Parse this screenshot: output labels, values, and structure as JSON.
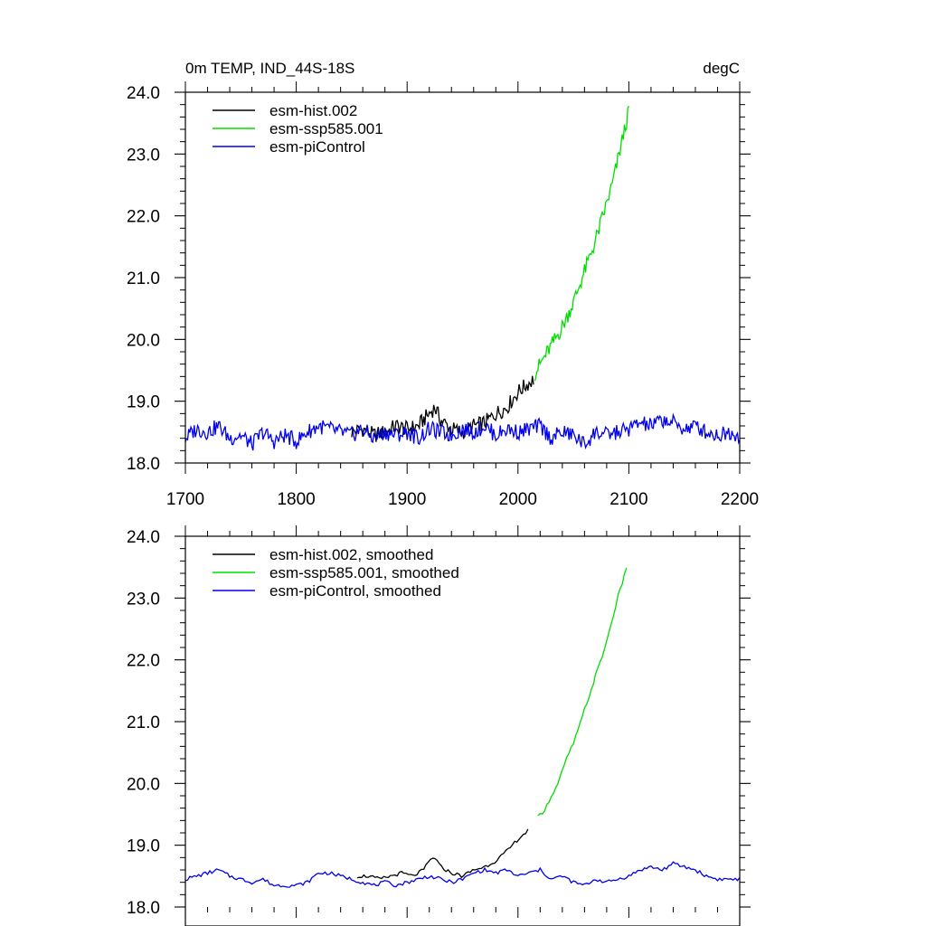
{
  "figure": {
    "title_left": "0m TEMP, IND_44S-18S",
    "title_right": "degC"
  },
  "colors": {
    "hist": "#000000",
    "ssp": "#00dd00",
    "picontrol": "#0000ee"
  },
  "chart_data": [
    {
      "type": "line",
      "panel": "top",
      "xlim": [
        1700,
        2200
      ],
      "ylim": [
        18.0,
        24.0
      ],
      "x_ticks": [
        1700,
        1800,
        1900,
        2000,
        2100,
        2200
      ],
      "x_tick_labels": [
        "1700",
        "1800",
        "1900",
        "2000",
        "2100",
        "2200"
      ],
      "y_ticks": [
        18.0,
        19.0,
        20.0,
        21.0,
        22.0,
        23.0,
        24.0
      ],
      "y_tick_labels": [
        "18.0",
        "19.0",
        "20.0",
        "21.0",
        "22.0",
        "23.0",
        "24.0"
      ],
      "legend_position": "top-left",
      "series": [
        {
          "name": "esm-hist.002",
          "color_key": "hist",
          "x": [
            1850,
            1860,
            1870,
            1880,
            1890,
            1900,
            1910,
            1920,
            1925,
            1930,
            1940,
            1950,
            1960,
            1970,
            1980,
            1990,
            2000,
            2010,
            2014
          ],
          "y": [
            18.5,
            18.55,
            18.45,
            18.5,
            18.6,
            18.55,
            18.6,
            18.8,
            18.9,
            18.7,
            18.55,
            18.5,
            18.6,
            18.65,
            18.8,
            18.9,
            19.15,
            19.3,
            19.35
          ]
        },
        {
          "name": "esm-ssp585.001",
          "color_key": "ssp",
          "x": [
            2015,
            2020,
            2025,
            2030,
            2035,
            2040,
            2045,
            2050,
            2055,
            2060,
            2065,
            2070,
            2075,
            2080,
            2085,
            2090,
            2095,
            2100
          ],
          "y": [
            19.45,
            19.6,
            19.75,
            19.9,
            20.05,
            20.2,
            20.4,
            20.6,
            20.85,
            21.1,
            21.35,
            21.6,
            21.9,
            22.2,
            22.5,
            22.9,
            23.3,
            23.7
          ]
        },
        {
          "name": "esm-piControl",
          "color_key": "picontrol",
          "x": [
            1700,
            1710,
            1720,
            1730,
            1740,
            1750,
            1760,
            1770,
            1780,
            1790,
            1800,
            1810,
            1820,
            1830,
            1840,
            1850,
            1860,
            1870,
            1880,
            1890,
            1900,
            1910,
            1920,
            1930,
            1940,
            1950,
            1960,
            1970,
            1980,
            1990,
            2000,
            2010,
            2020,
            2030,
            2040,
            2050,
            2060,
            2070,
            2080,
            2090,
            2100,
            2110,
            2120,
            2130,
            2140,
            2150,
            2160,
            2170,
            2180,
            2190,
            2200
          ],
          "y": [
            18.4,
            18.55,
            18.5,
            18.6,
            18.4,
            18.45,
            18.3,
            18.5,
            18.35,
            18.45,
            18.35,
            18.5,
            18.6,
            18.55,
            18.5,
            18.45,
            18.55,
            18.4,
            18.5,
            18.45,
            18.5,
            18.4,
            18.55,
            18.5,
            18.45,
            18.55,
            18.5,
            18.6,
            18.45,
            18.55,
            18.5,
            18.55,
            18.6,
            18.4,
            18.5,
            18.45,
            18.3,
            18.5,
            18.45,
            18.5,
            18.55,
            18.65,
            18.6,
            18.7,
            18.65,
            18.55,
            18.6,
            18.5,
            18.45,
            18.5,
            18.45
          ]
        }
      ]
    },
    {
      "type": "line",
      "panel": "bottom",
      "xlim": [
        1700,
        2200
      ],
      "ylim": [
        18.0,
        24.0
      ],
      "y_ticks": [
        18.0,
        19.0,
        20.0,
        21.0,
        22.0,
        23.0,
        24.0
      ],
      "y_tick_labels": [
        "18.0",
        "19.0",
        "20.0",
        "21.0",
        "22.0",
        "23.0",
        "24.0"
      ],
      "legend_position": "top-left",
      "series": [
        {
          "name": "esm-hist.002, smoothed",
          "color_key": "hist",
          "x": [
            1855,
            1865,
            1875,
            1885,
            1895,
            1905,
            1915,
            1920,
            1925,
            1930,
            1940,
            1950,
            1960,
            1970,
            1980,
            1990,
            2000,
            2010
          ],
          "y": [
            18.5,
            18.5,
            18.45,
            18.5,
            18.55,
            18.5,
            18.6,
            18.75,
            18.8,
            18.65,
            18.55,
            18.5,
            18.6,
            18.65,
            18.75,
            18.9,
            19.1,
            19.25
          ]
        },
        {
          "name": "esm-ssp585.001, smoothed",
          "color_key": "ssp",
          "x": [
            2018,
            2025,
            2030,
            2035,
            2040,
            2045,
            2050,
            2055,
            2060,
            2065,
            2070,
            2075,
            2080,
            2085,
            2090,
            2095,
            2098
          ],
          "y": [
            19.45,
            19.6,
            19.8,
            19.95,
            20.2,
            20.45,
            20.65,
            20.9,
            21.2,
            21.45,
            21.75,
            22.0,
            22.3,
            22.65,
            23.0,
            23.3,
            23.5
          ]
        },
        {
          "name": "esm-piControl, smoothed",
          "color_key": "picontrol",
          "x": [
            1700,
            1710,
            1720,
            1730,
            1740,
            1750,
            1760,
            1770,
            1780,
            1790,
            1800,
            1810,
            1820,
            1830,
            1840,
            1850,
            1860,
            1870,
            1880,
            1890,
            1900,
            1910,
            1920,
            1930,
            1940,
            1950,
            1960,
            1970,
            1980,
            1990,
            2000,
            2010,
            2020,
            2030,
            2040,
            2050,
            2060,
            2070,
            2080,
            2090,
            2100,
            2110,
            2120,
            2130,
            2140,
            2150,
            2160,
            2170,
            2180,
            2190,
            2200
          ],
          "y": [
            18.45,
            18.5,
            18.55,
            18.6,
            18.5,
            18.45,
            18.4,
            18.45,
            18.35,
            18.35,
            18.35,
            18.4,
            18.55,
            18.55,
            18.5,
            18.45,
            18.4,
            18.35,
            18.4,
            18.35,
            18.4,
            18.45,
            18.5,
            18.45,
            18.4,
            18.45,
            18.55,
            18.6,
            18.55,
            18.6,
            18.5,
            18.55,
            18.6,
            18.45,
            18.5,
            18.4,
            18.35,
            18.45,
            18.4,
            18.45,
            18.5,
            18.6,
            18.65,
            18.6,
            18.7,
            18.65,
            18.6,
            18.5,
            18.45,
            18.45,
            18.45
          ]
        }
      ]
    }
  ]
}
